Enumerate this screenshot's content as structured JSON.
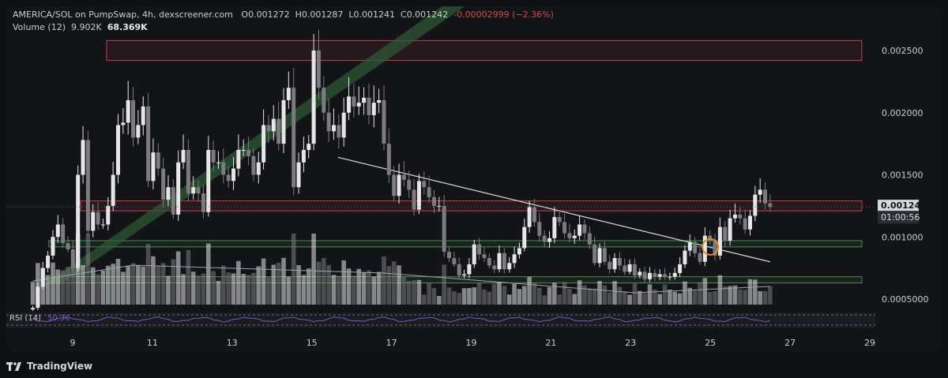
{
  "header": {
    "symbol_line": "AMERICA/SOL on PumpSwap, 4h, dexscreener.com",
    "o_label": "O",
    "o_value": "0.001272",
    "h_label": "H",
    "h_value": "0.001287",
    "l_label": "L",
    "l_value": "0.001241",
    "c_label": "C",
    "c_value": "0.001242",
    "change": "-0.00002999 (−2.36%)",
    "volume_label": "Volume (12)",
    "volume_value": "9.902K",
    "volume_ma": "68.369K"
  },
  "rsi": {
    "label": "RSI (14)",
    "value": "50.36"
  },
  "price_badge": {
    "price": "0.001242",
    "countdown": "01:00:56"
  },
  "footer": {
    "brand": "TradingView"
  },
  "colors": {
    "background": "#121418",
    "up_candle": "#e6e6e6",
    "down_candle": "#7c7c80",
    "red_zone": "#c0414e",
    "green_zone": "#4e8a55",
    "trend_green": "#2f5a36",
    "trendline": "#d9d9d9",
    "rsi_line": "#7e57c2",
    "marker": "#e08a2b"
  },
  "chart_data": {
    "type": "candlestick",
    "x_ticks": [
      "9",
      "11",
      "13",
      "15",
      "17",
      "19",
      "21",
      "23",
      "25",
      "27",
      "29"
    ],
    "y_ticks": [
      "0.002500",
      "0.002000",
      "0.001500",
      "0.001000",
      "0.0005000"
    ],
    "ylim": [
      0.0003,
      0.0028
    ],
    "x_range_days": [
      8,
      29.8
    ],
    "candles_close": [
      0.00043,
      0.0006,
      0.00075,
      0.00085,
      0.001,
      0.0011,
      0.00095,
      0.0009,
      0.00075,
      0.0015,
      0.00178,
      0.00105,
      0.0012,
      0.0011,
      0.0011,
      0.00125,
      0.0015,
      0.0019,
      0.00192,
      0.0021,
      0.0018,
      0.0019,
      0.00205,
      0.00145,
      0.00168,
      0.00155,
      0.0013,
      0.0014,
      0.00118,
      0.0016,
      0.0017,
      0.00135,
      0.0014,
      0.00135,
      0.0012,
      0.0017,
      0.0016,
      0.0016,
      0.0015,
      0.00145,
      0.00155,
      0.0017,
      0.0017,
      0.00165,
      0.0015,
      0.0016,
      0.0019,
      0.00185,
      0.00195,
      0.00175,
      0.0021,
      0.0022,
      0.0014,
      0.0016,
      0.0017,
      0.00175,
      0.0025,
      0.0022,
      0.002,
      0.00185,
      0.0019,
      0.0018,
      0.002,
      0.00213,
      0.00205,
      0.00208,
      0.00212,
      0.00198,
      0.00208,
      0.0021,
      0.00175,
      0.0015,
      0.00133,
      0.0015,
      0.00146,
      0.00138,
      0.00122,
      0.00145,
      0.0014,
      0.00132,
      0.00125,
      0.00125,
      0.00088,
      0.00083,
      0.00078,
      0.00069,
      0.0007,
      0.00078,
      0.00094,
      0.00086,
      0.00083,
      0.00077,
      0.00074,
      0.00087,
      0.00074,
      0.00079,
      0.00086,
      0.00091,
      0.00108,
      0.00124,
      0.00112,
      0.00101,
      0.00096,
      0.00099,
      0.00116,
      0.00112,
      0.00103,
      0.00099,
      0.00101,
      0.0011,
      0.00103,
      0.00094,
      0.00079,
      0.00091,
      0.0008,
      0.00074,
      0.00083,
      0.00077,
      0.00072,
      0.00078,
      0.00069,
      0.00072,
      0.00066,
      0.00071,
      0.00068,
      0.0007,
      0.00068,
      0.00068,
      0.00071,
      0.00078,
      0.00089,
      0.00096,
      0.00087,
      0.0008,
      0.00101,
      0.00097,
      0.00085,
      0.00108,
      0.00097,
      0.00115,
      0.00118,
      0.00115,
      0.00106,
      0.00117,
      0.00134,
      0.00138,
      0.00127,
      0.00124
    ]
  }
}
